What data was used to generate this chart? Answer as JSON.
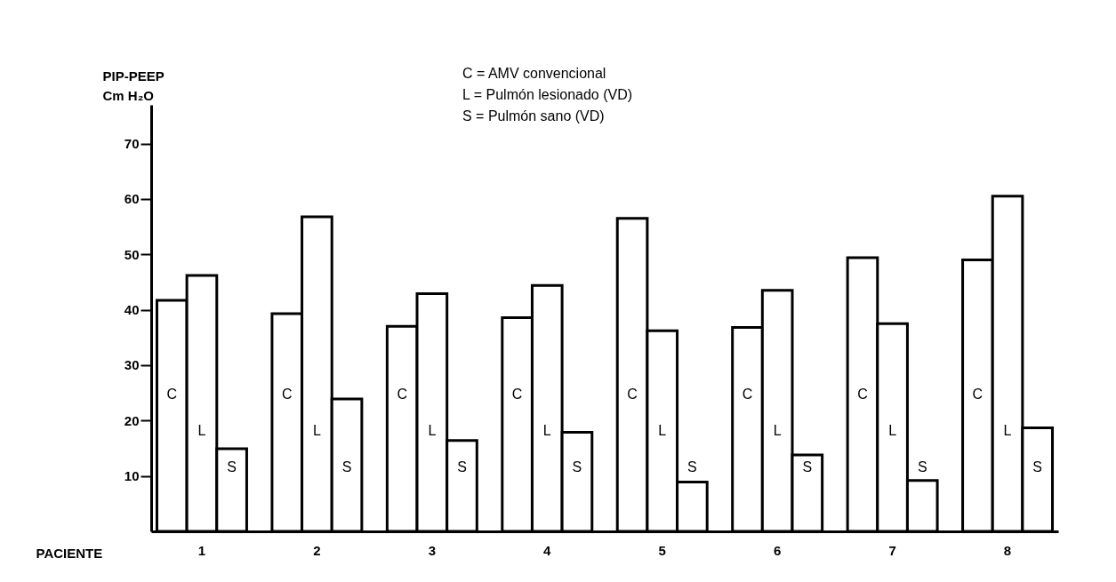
{
  "chart_data": {
    "type": "bar",
    "xlabel": "PACIENTE",
    "ylabel": "PIP-PEEP\nCm H₂O",
    "categories": [
      "1",
      "2",
      "3",
      "4",
      "5",
      "6",
      "7",
      "8"
    ],
    "series": [
      {
        "name": "C",
        "color": "#ffffff",
        "values": [
          41.7,
          39.3,
          37.0,
          38.6,
          56.5,
          36.8,
          49.4,
          49.0
        ]
      },
      {
        "name": "L",
        "color": "#ffffff",
        "values": [
          46.2,
          56.8,
          42.9,
          44.4,
          36.2,
          43.5,
          37.5,
          60.5
        ]
      },
      {
        "name": "S",
        "color": "#ffffff",
        "values": [
          14.9,
          23.9,
          16.4,
          17.9,
          8.9,
          13.8,
          9.2,
          18.7
        ]
      }
    ],
    "ylim": [
      0,
      77
    ],
    "yticks": [
      10,
      20,
      30,
      40,
      50,
      60,
      70
    ],
    "grid": false,
    "annotations": [
      "C = AMV   convencional",
      "L = Pulmón lesionado (VD)",
      "S = Pulmón sano (VD)"
    ]
  }
}
